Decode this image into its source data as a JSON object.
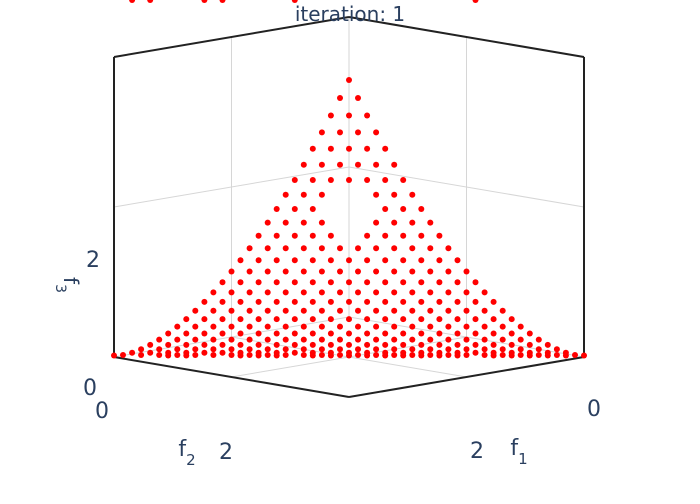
{
  "chart_data": {
    "type": "scatter",
    "title": "iteration: 1",
    "marker_color": "#ff0000",
    "axes": {
      "x": {
        "label": "f1",
        "label_base": "f",
        "label_sub": "1",
        "ticks": [
          "0",
          "2"
        ]
      },
      "y": {
        "label": "f2",
        "label_base": "f",
        "label_sub": "2",
        "ticks": [
          "0",
          "2"
        ]
      },
      "z": {
        "label": "f3",
        "label_base": "f",
        "label_sub": "3",
        "ticks": [
          "0",
          "2"
        ]
      }
    },
    "range": [
      0,
      4
    ],
    "surface": "three-objective Pareto front with a triangular hole near the apex",
    "grid_on": true
  }
}
